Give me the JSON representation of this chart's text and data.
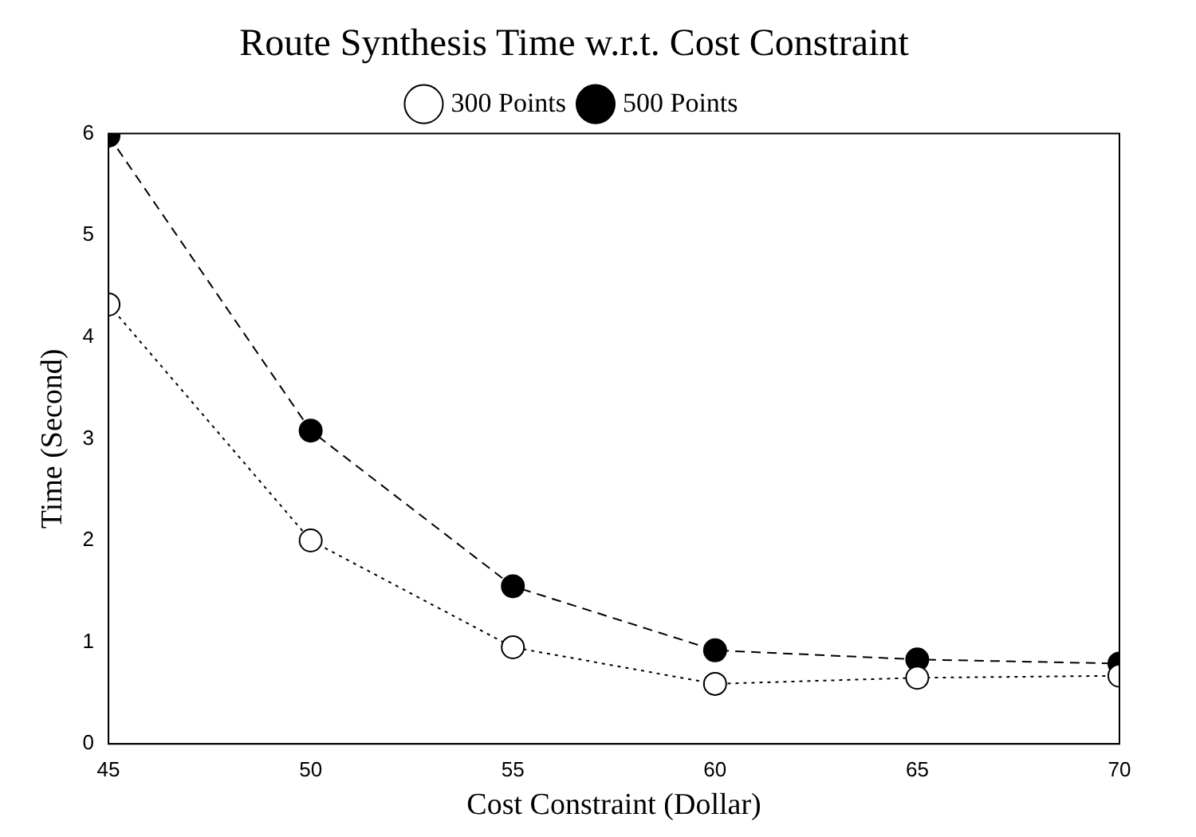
{
  "chart_data": {
    "type": "line",
    "title": "Route Synthesis Time w.r.t. Cost Constraint",
    "xlabel": "Cost Constraint (Dollar)",
    "ylabel": "Time (Second)",
    "x": [
      45,
      50,
      55,
      60,
      65,
      70
    ],
    "series": [
      {
        "name": "300 Points",
        "color": "#000000",
        "line_style": "dotted",
        "values": [
          4.32,
          2.0,
          0.95,
          0.59,
          0.65,
          0.67
        ]
      },
      {
        "name": "500 Points",
        "color": "#000000",
        "line_style": "dashed",
        "values": [
          5.98,
          3.08,
          1.55,
          0.92,
          0.83,
          0.79
        ]
      }
    ],
    "xlim": [
      45,
      70
    ],
    "xticks": [
      45,
      50,
      55,
      60,
      65,
      70
    ],
    "ylim": [
      0,
      6
    ],
    "yticks": [
      0,
      1,
      2,
      3,
      4,
      5,
      6
    ],
    "grid": false,
    "legend": "top",
    "marker": "circle"
  }
}
